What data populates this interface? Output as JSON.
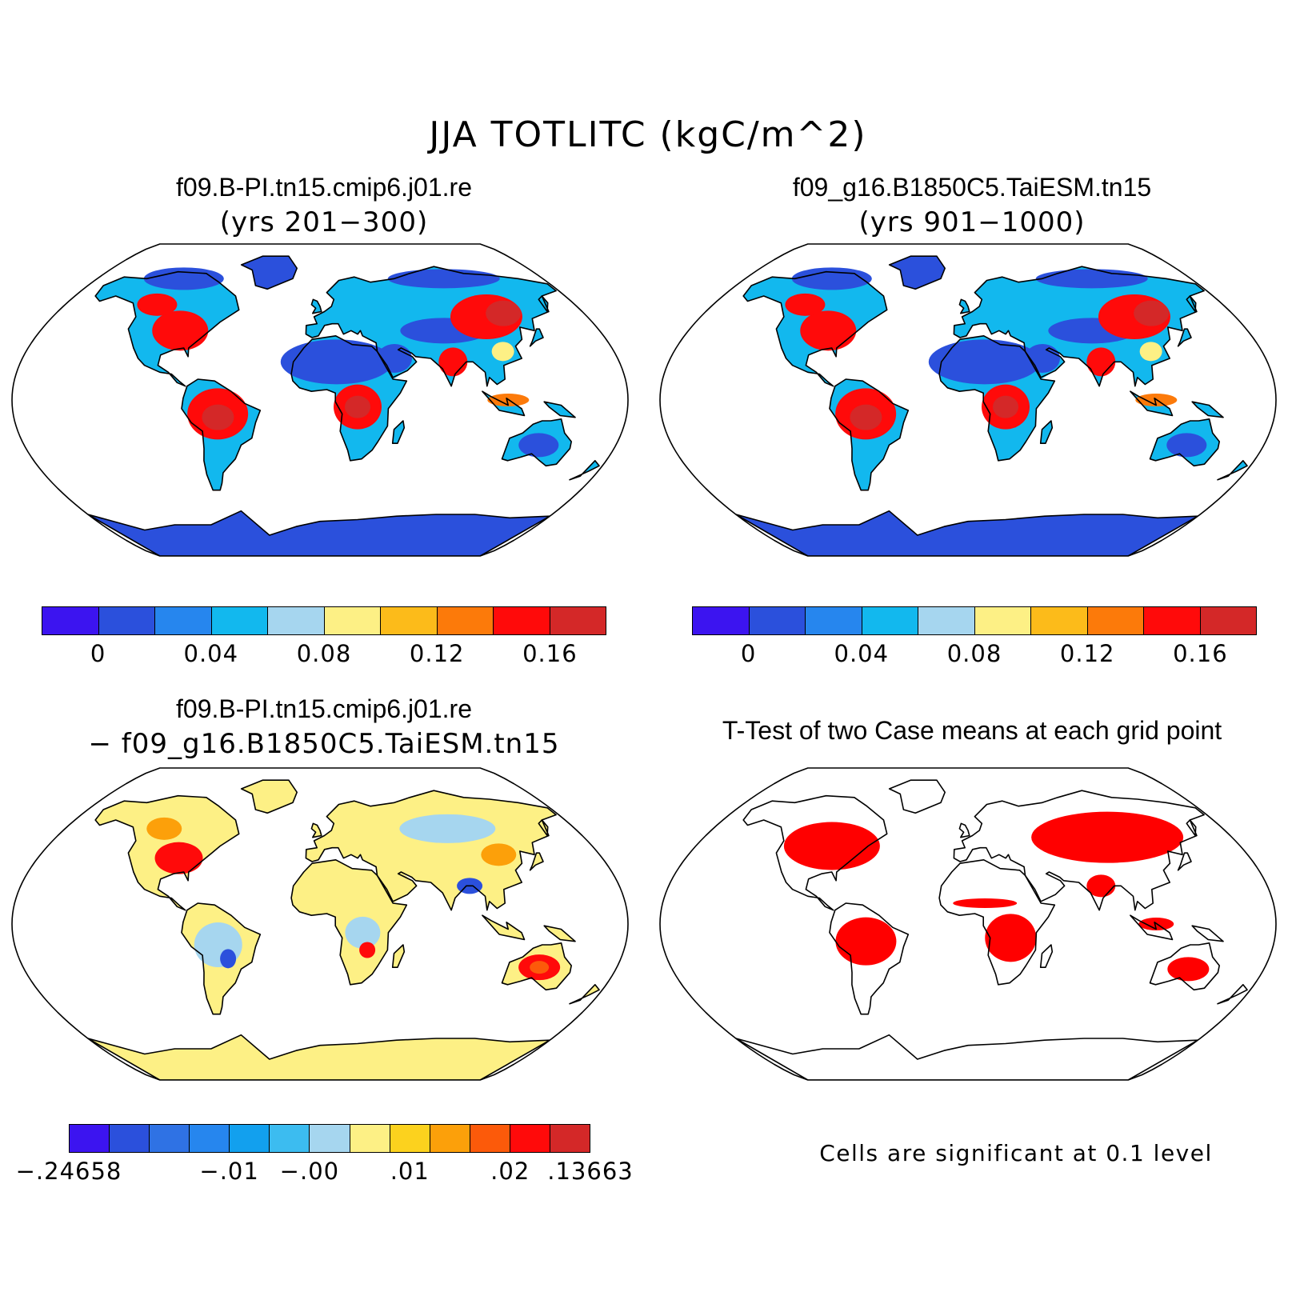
{
  "figure": {
    "title": "JJA TOTLITC (kgC/m^2)"
  },
  "panels": [
    {
      "id": "case1",
      "title_line1": "f09.B-PI.tn15.cmip6.j01.re",
      "title_line2": "(yrs 201−300)"
    },
    {
      "id": "case2",
      "title_line1": "f09_g16.B1850C5.TaiESM.tn15",
      "title_line2": "(yrs 901−1000)"
    },
    {
      "id": "diff",
      "title_line1": "f09.B-PI.tn15.cmip6.j01.re",
      "title_line2": "− f09_g16.B1850C5.TaiESM.tn15"
    },
    {
      "id": "ttest",
      "title_line1": "T-Test of two Case means at each grid point",
      "note": "Cells are significant at 0.1 level"
    }
  ],
  "colorbars": {
    "case": {
      "colors": [
        "#3c14f0",
        "#2b50dc",
        "#2686ee",
        "#12b8ee",
        "#a6d6ef",
        "#fdf085",
        "#fcbb1a",
        "#fc7a0a",
        "#ff0a0a",
        "#d42828"
      ],
      "ticks": [
        "0",
        "0.04",
        "0.08",
        "0.12",
        "0.16"
      ]
    },
    "diff": {
      "colors": [
        "#3c14f0",
        "#2b50dc",
        "#2f72e4",
        "#2686ee",
        "#12a0ee",
        "#3cbcf0",
        "#a6d6ef",
        "#fdf085",
        "#fcd21e",
        "#fca00a",
        "#fc5a0a",
        "#ff0a0a",
        "#d42828"
      ],
      "ticks": [
        ".24658",
        "−.01",
        "−.00",
        ".01",
        ".02",
        ".13663"
      ],
      "first_tick_prefix": "−"
    }
  },
  "map_colors": {
    "ocean": "#ffffff",
    "case_low": "#2b50dc",
    "case_mid": "#12b8ee",
    "case_high": "#ff0a0a",
    "case_top": "#d42828",
    "case_yellow": "#fdf085",
    "diff_base": "#fdf085",
    "diff_blue": "#a6d6ef",
    "diff_red": "#ff0a0a",
    "sig": "#ff0000"
  }
}
